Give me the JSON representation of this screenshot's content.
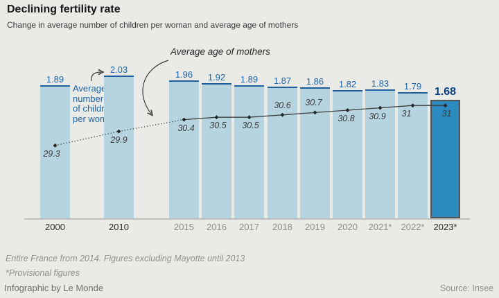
{
  "header": {
    "title": "Declining fertility rate",
    "subtitle": "Change in average number of children per woman and average age of mothers"
  },
  "annotations": {
    "age_line_label": "Average age of mothers",
    "children_bar_label": "Average\nnumber\nof children\nper woman"
  },
  "chart_data": {
    "type": "bar",
    "categories": [
      "2000",
      "2010",
      "2015",
      "2016",
      "2017",
      "2018",
      "2019",
      "2020",
      "2021*",
      "2022*",
      "2023*"
    ],
    "series": [
      {
        "name": "Average number of children per woman",
        "type": "bar",
        "values": [
          1.89,
          2.03,
          1.96,
          1.92,
          1.89,
          1.87,
          1.86,
          1.82,
          1.83,
          1.79,
          1.68
        ]
      },
      {
        "name": "Average age of mothers",
        "type": "line",
        "values": [
          29.3,
          29.9,
          30.4,
          30.5,
          30.5,
          30.6,
          30.7,
          30.8,
          30.9,
          31,
          31
        ]
      }
    ],
    "highlight_category": "2023*",
    "emphasized_x_labels": [
      "2000",
      "2010",
      "2023*"
    ],
    "bar_value_labels_shown": true,
    "line_point_labels_shown": true,
    "legend_position": "none",
    "grid": "off",
    "ylim_bars": [
      0,
      2.2
    ],
    "colors": {
      "bar_fill": "#b6d4e0",
      "bar_top_line": "#1c5f9f",
      "bar_value_text": "#1d65a8",
      "highlight_bar_fill": "#2b8ac0",
      "highlight_bar_border": "#515355",
      "highlight_value_text": "#0a3f85",
      "age_line": "#3d3d3d",
      "background": "#eaeae7"
    }
  },
  "footer": {
    "note1": "Entire France from 2014. Figures excluding Mayotte until 2013",
    "note2": "*Provisional figures",
    "byline": "Infographic by Le Monde",
    "source": "Source: Insee"
  }
}
